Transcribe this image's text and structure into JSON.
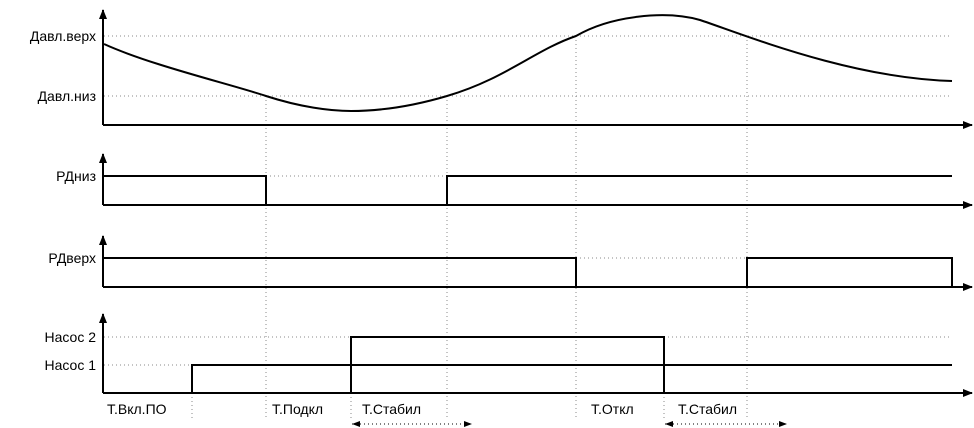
{
  "y_labels": {
    "pressure_high": "Давл.верх",
    "pressure_low": "Давл.низ",
    "rd_low": "РДниз",
    "rd_high": "РДверх",
    "pump_2": "Насос 2",
    "pump_1": "Насос 1"
  },
  "time_labels": {
    "t_on_po": "Т.Вкл.ПО",
    "t_connect": "Т.Подкл",
    "t_stabil_1": "Т.Стабил",
    "t_off": "Т.Откл",
    "t_stabil_2": "Т.Стабил"
  },
  "colors": {
    "signal": "#000000",
    "grid": "#8a8a8a",
    "background": "#ffffff"
  }
}
